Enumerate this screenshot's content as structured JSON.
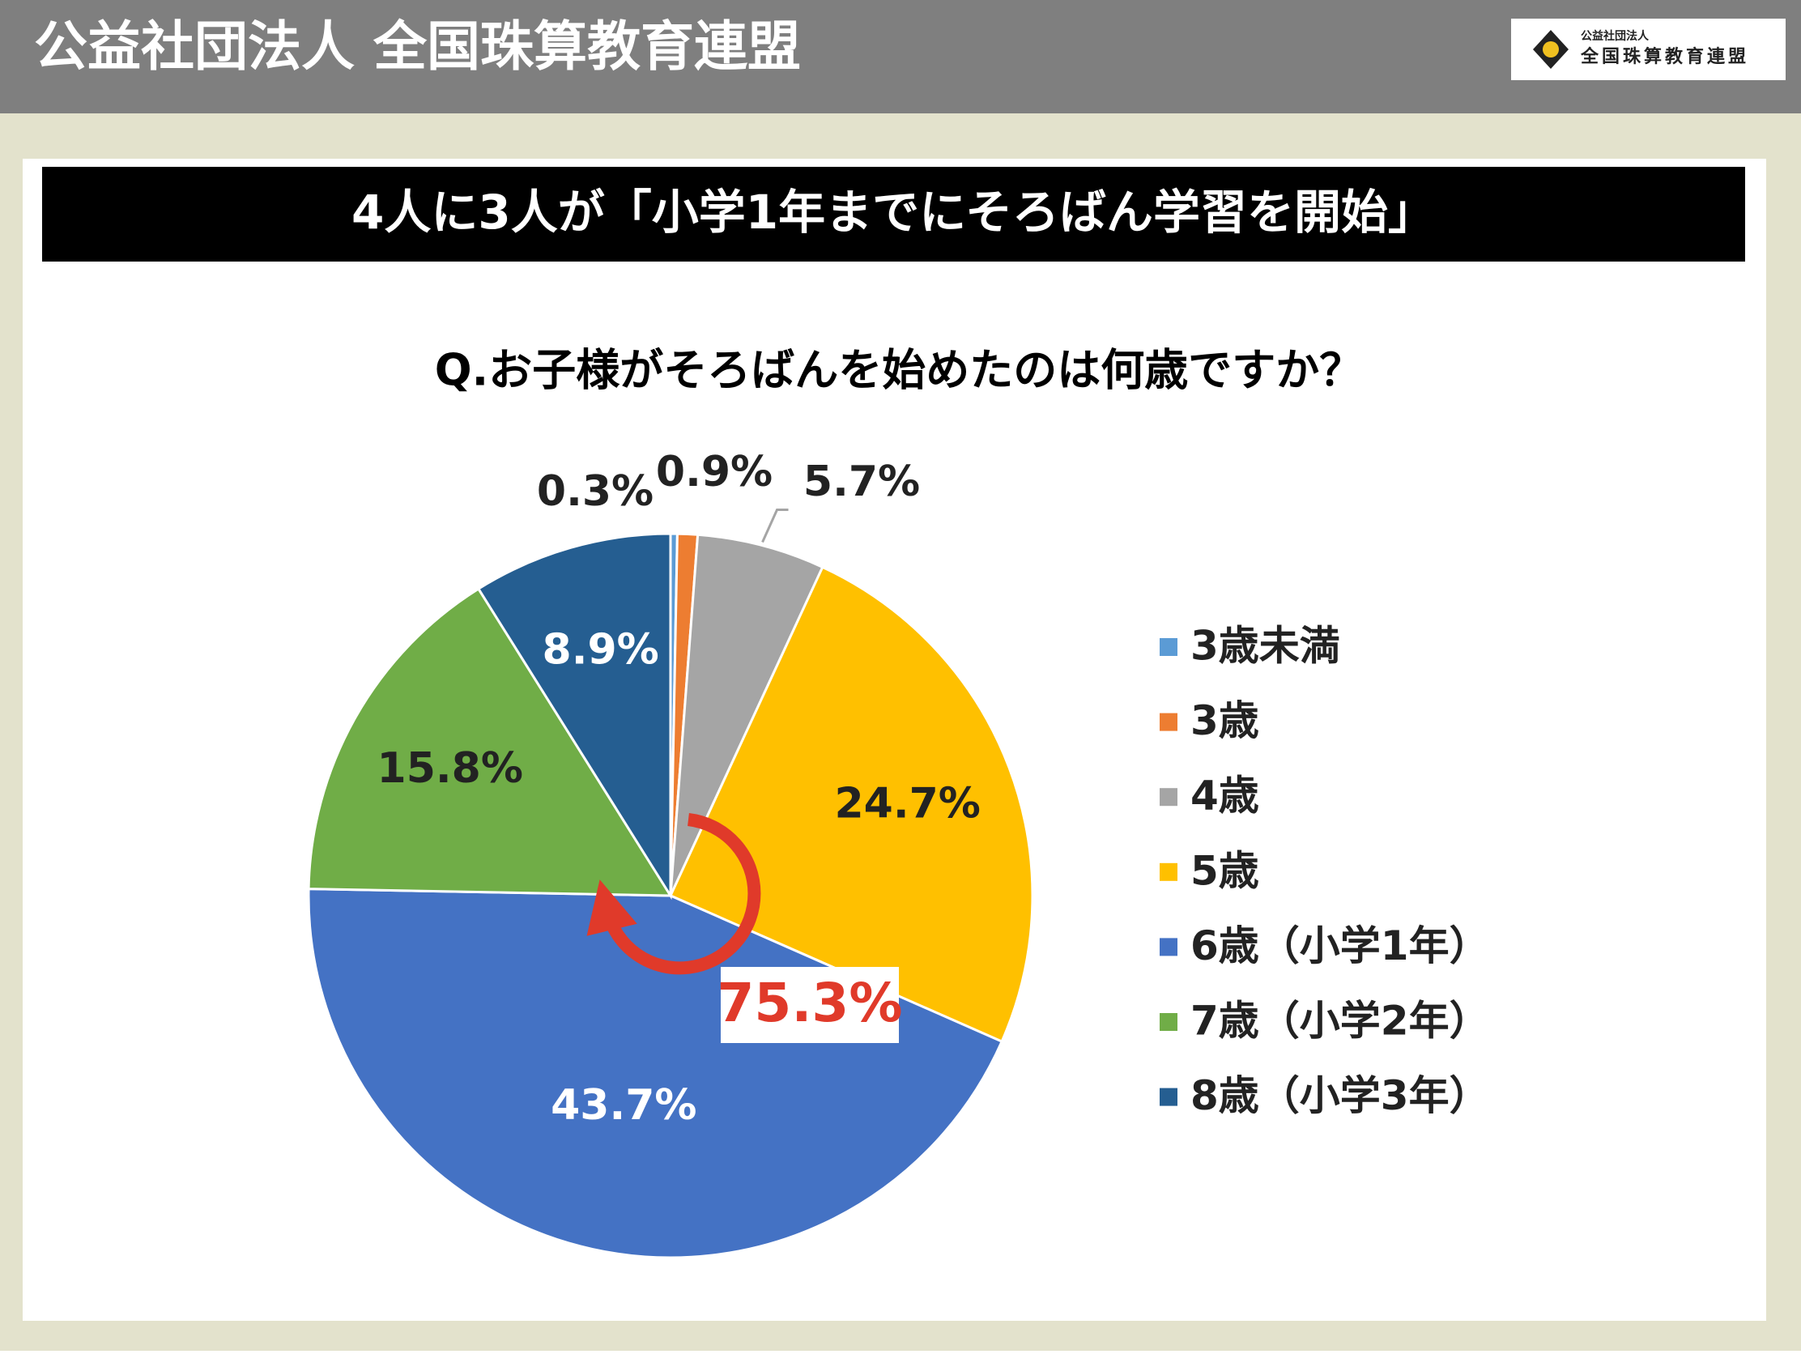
{
  "header": {
    "title": "公益社団法人 全国珠算教育連盟",
    "logo_small": "公益社団法人",
    "logo_large": "全国珠算教育連盟"
  },
  "banner": "4人に3人が「小学1年までにそろばん学習を開始」",
  "chart_data": {
    "type": "pie",
    "title": "Q.お子様がそろばんを始めたのは何歳ですか？",
    "categories": [
      "3歳未満",
      "3歳",
      "4歳",
      "5歳",
      "6歳（小学1年）",
      "7歳（小学2年）",
      "8歳（小学3年）"
    ],
    "values": [
      0.3,
      0.9,
      5.7,
      24.7,
      43.7,
      15.8,
      8.9
    ],
    "value_labels": [
      "0.3%",
      "0.9%",
      "5.7%",
      "24.7%",
      "43.7%",
      "15.8%",
      "8.9%"
    ],
    "colors": [
      "#5b9bd5",
      "#ed7d31",
      "#a5a5a5",
      "#ffc000",
      "#4472c4",
      "#70ad47",
      "#255e91"
    ],
    "annotation": "75.3%",
    "legend": "right"
  }
}
